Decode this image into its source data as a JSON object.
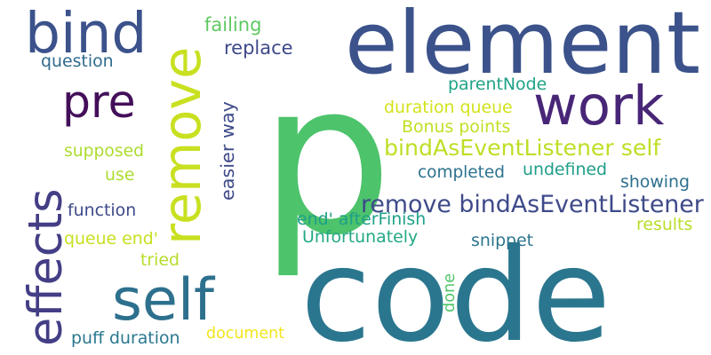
{
  "words": [
    {
      "text": "p",
      "color": "#4dc36b",
      "vertical": false
    },
    {
      "text": "code",
      "color": "#2a768e",
      "vertical": false
    },
    {
      "text": "element",
      "color": "#3b528b",
      "vertical": false
    },
    {
      "text": "self",
      "color": "#2d708e",
      "vertical": false
    },
    {
      "text": "bind",
      "color": "#3b528b",
      "vertical": false
    },
    {
      "text": "pre",
      "color": "#440f5a",
      "vertical": false
    },
    {
      "text": "work",
      "color": "#482677",
      "vertical": false
    },
    {
      "text": "remove",
      "color": "#c8e020",
      "vertical": true
    },
    {
      "text": "effects",
      "color": "#433e85",
      "vertical": true
    },
    {
      "text": "remove bindAsEventListener",
      "color": "#3e4a89",
      "vertical": false
    },
    {
      "text": "bindAsEventListener self",
      "color": "#bddf26",
      "vertical": false
    },
    {
      "text": "failing",
      "color": "#5ec962",
      "vertical": false
    },
    {
      "text": "replace",
      "color": "#3e4989",
      "vertical": false
    },
    {
      "text": "question",
      "color": "#2f6b8e",
      "vertical": false
    },
    {
      "text": "parentNode",
      "color": "#20a386",
      "vertical": false
    },
    {
      "text": "duration queue",
      "color": "#d2e21b",
      "vertical": false
    },
    {
      "text": "Bonus points",
      "color": "#c2df23",
      "vertical": false
    },
    {
      "text": "easier way",
      "color": "#3e4a89",
      "vertical": true
    },
    {
      "text": "supposed",
      "color": "#addc30",
      "vertical": false
    },
    {
      "text": "use",
      "color": "#addc30",
      "vertical": false
    },
    {
      "text": "completed",
      "color": "#2c728e",
      "vertical": false
    },
    {
      "text": "undefined",
      "color": "#1f9e89",
      "vertical": false
    },
    {
      "text": "showing",
      "color": "#2d708e",
      "vertical": false
    },
    {
      "text": "function",
      "color": "#3e4989",
      "vertical": false
    },
    {
      "text": "end' afterFinish",
      "color": "#1fa088",
      "vertical": false
    },
    {
      "text": "results",
      "color": "#b8de29",
      "vertical": false
    },
    {
      "text": "queue end'",
      "color": "#c8e020",
      "vertical": false
    },
    {
      "text": "Unfortunately",
      "color": "#22a884",
      "vertical": false
    },
    {
      "text": "snippet",
      "color": "#2b758e",
      "vertical": false
    },
    {
      "text": "tried",
      "color": "#b5de2b",
      "vertical": false
    },
    {
      "text": "done",
      "color": "#52c569",
      "vertical": true
    },
    {
      "text": "puff duration",
      "color": "#2a788e",
      "vertical": false
    },
    {
      "text": "document",
      "color": "#f1e51d",
      "vertical": false
    }
  ]
}
